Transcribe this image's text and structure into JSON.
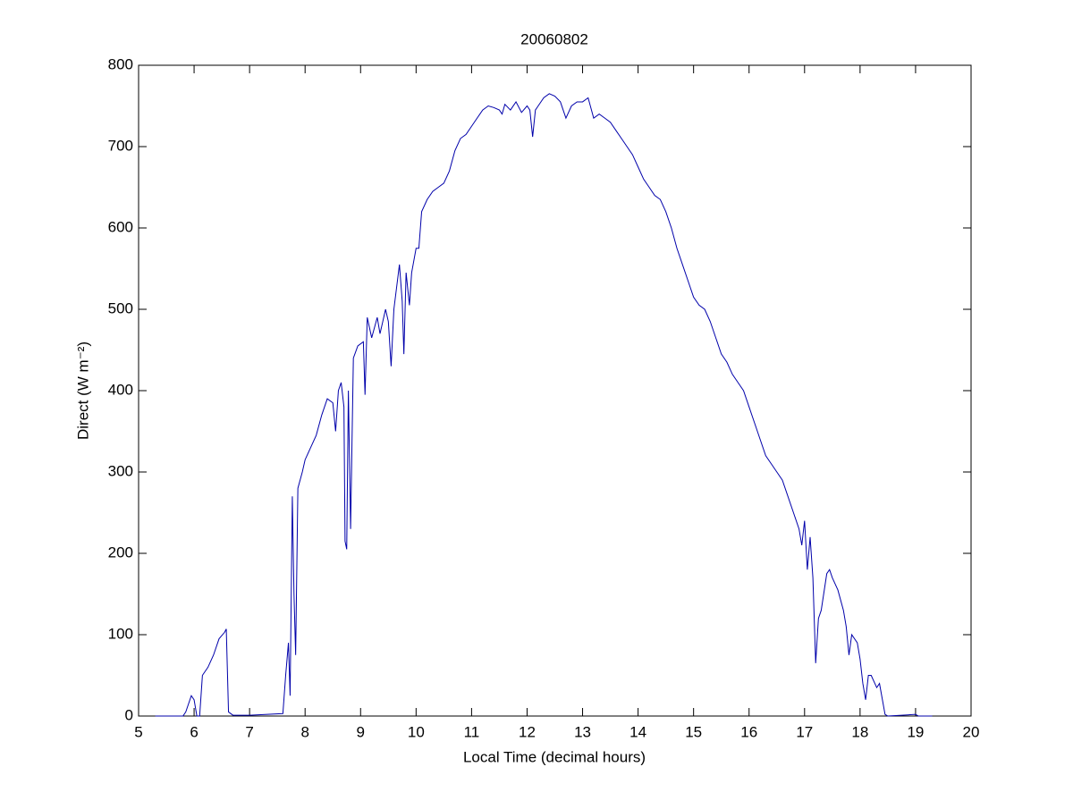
{
  "chart_data": {
    "type": "line",
    "title": "20060802",
    "xlabel": "Local Time (decimal hours)",
    "ylabel": "Direct (W m⁻²)",
    "xlim": [
      5,
      20
    ],
    "ylim": [
      0,
      800
    ],
    "xticks": [
      5,
      6,
      7,
      8,
      9,
      10,
      11,
      12,
      13,
      14,
      15,
      16,
      17,
      18,
      19,
      20
    ],
    "yticks": [
      0,
      100,
      200,
      300,
      400,
      500,
      600,
      700,
      800
    ],
    "grid": false,
    "series": [
      {
        "color": "#0000aa",
        "x": [
          5.3,
          5.8,
          5.85,
          5.95,
          6.0,
          6.05,
          6.1,
          6.15,
          6.25,
          6.35,
          6.45,
          6.55,
          6.58,
          6.62,
          6.7,
          7.0,
          7.6,
          7.65,
          7.7,
          7.73,
          7.77,
          7.8,
          7.83,
          7.87,
          7.95,
          8.0,
          8.1,
          8.2,
          8.3,
          8.4,
          8.5,
          8.55,
          8.6,
          8.65,
          8.7,
          8.72,
          8.75,
          8.78,
          8.82,
          8.87,
          8.95,
          9.05,
          9.08,
          9.12,
          9.2,
          9.3,
          9.35,
          9.45,
          9.5,
          9.55,
          9.6,
          9.7,
          9.75,
          9.78,
          9.82,
          9.88,
          9.92,
          10.0,
          10.05,
          10.1,
          10.2,
          10.3,
          10.4,
          10.5,
          10.6,
          10.7,
          10.8,
          10.9,
          11.0,
          11.1,
          11.2,
          11.3,
          11.4,
          11.5,
          11.55,
          11.6,
          11.7,
          11.8,
          11.9,
          12.0,
          12.05,
          12.1,
          12.15,
          12.2,
          12.3,
          12.4,
          12.5,
          12.6,
          12.7,
          12.8,
          12.9,
          13.0,
          13.1,
          13.2,
          13.3,
          13.4,
          13.5,
          13.6,
          13.7,
          13.8,
          13.9,
          14.0,
          14.1,
          14.2,
          14.3,
          14.4,
          14.5,
          14.6,
          14.7,
          14.8,
          14.9,
          15.0,
          15.1,
          15.2,
          15.3,
          15.4,
          15.5,
          15.6,
          15.7,
          15.8,
          15.9,
          16.0,
          16.1,
          16.2,
          16.3,
          16.4,
          16.5,
          16.6,
          16.7,
          16.8,
          16.9,
          16.95,
          17.0,
          17.05,
          17.1,
          17.15,
          17.2,
          17.25,
          17.3,
          17.4,
          17.45,
          17.5,
          17.6,
          17.7,
          17.75,
          17.8,
          17.85,
          17.95,
          18.0,
          18.05,
          18.1,
          18.15,
          18.2,
          18.3,
          18.35,
          18.45,
          18.5,
          19.0,
          19.05,
          19.3
        ],
        "values": [
          0,
          0,
          5,
          25,
          20,
          0,
          0,
          50,
          60,
          75,
          95,
          103,
          107,
          5,
          1,
          1,
          3,
          50,
          90,
          25,
          270,
          150,
          75,
          280,
          300,
          315,
          330,
          345,
          370,
          390,
          385,
          350,
          400,
          410,
          380,
          215,
          205,
          400,
          230,
          440,
          455,
          460,
          395,
          490,
          465,
          490,
          470,
          500,
          485,
          430,
          500,
          555,
          510,
          445,
          545,
          505,
          545,
          575,
          575,
          620,
          635,
          645,
          650,
          655,
          670,
          695,
          710,
          715,
          725,
          735,
          745,
          750,
          748,
          745,
          740,
          752,
          745,
          755,
          742,
          750,
          745,
          712,
          745,
          750,
          760,
          765,
          762,
          755,
          735,
          750,
          755,
          755,
          760,
          735,
          740,
          735,
          730,
          720,
          710,
          700,
          690,
          675,
          660,
          650,
          640,
          635,
          620,
          600,
          575,
          555,
          535,
          515,
          505,
          500,
          485,
          465,
          445,
          435,
          420,
          410,
          400,
          380,
          360,
          340,
          320,
          310,
          300,
          290,
          270,
          250,
          230,
          210,
          240,
          180,
          220,
          170,
          65,
          120,
          130,
          175,
          180,
          170,
          155,
          130,
          110,
          75,
          100,
          90,
          70,
          40,
          20,
          50,
          50,
          35,
          40,
          2,
          0,
          2,
          0,
          0
        ]
      }
    ]
  }
}
